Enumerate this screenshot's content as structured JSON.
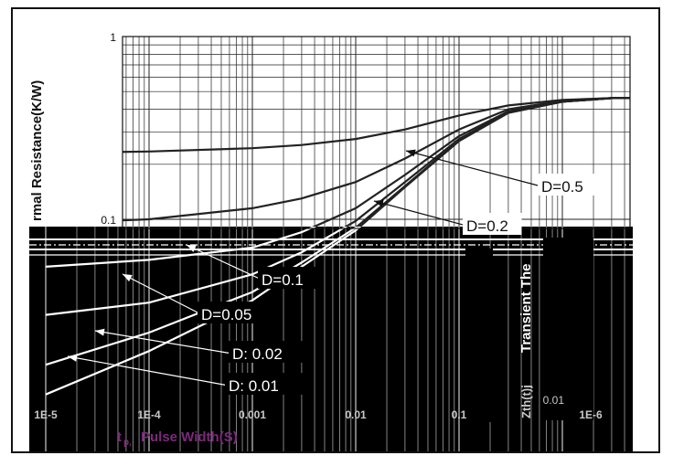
{
  "chart_data": {
    "type": "line",
    "title": "",
    "ylabel": "Zth(t)j-c Transient Thermal Resistance(K/W)",
    "ylabel_visible": "rmal Resistance(K/W)",
    "ylabel_ghost": "Transient The",
    "ylabel_ghost_symbol": "Zth(t)j",
    "xlabel": "tp, Pulse Width(S)",
    "xlabel_visible": "t",
    "xlabel_suffix": "p,",
    "xlabel_rest": "Pulse Width(S)",
    "x_scale": "log",
    "y_scale": "log",
    "xlim": [
      1e-05,
      10
    ],
    "ylim": [
      0.01,
      1
    ],
    "grid": true,
    "x_ticks": [
      "1E-5",
      "1E-4",
      "0.001",
      "0.01",
      "0.1",
      "1E-6"
    ],
    "y_ticks": [
      "1",
      "0.1",
      "0.01"
    ],
    "series": [
      {
        "name": "D=0.5",
        "x": [
          1e-05,
          0.0001,
          0.001,
          0.003,
          0.01,
          0.03,
          0.1,
          0.3,
          1,
          3,
          10
        ],
        "y": [
          0.23,
          0.235,
          0.245,
          0.255,
          0.275,
          0.31,
          0.37,
          0.42,
          0.45,
          0.46,
          0.46
        ]
      },
      {
        "name": "D=0.2",
        "x": [
          1e-05,
          0.0001,
          0.001,
          0.003,
          0.01,
          0.03,
          0.1,
          0.3,
          1,
          3,
          10
        ],
        "y": [
          0.095,
          0.1,
          0.115,
          0.13,
          0.16,
          0.215,
          0.31,
          0.4,
          0.445,
          0.46,
          0.46
        ]
      },
      {
        "name": "D=0.1",
        "x": [
          1e-05,
          0.0001,
          0.001,
          0.003,
          0.01,
          0.03,
          0.1,
          0.3,
          1,
          3,
          10
        ],
        "y": [
          0.055,
          0.06,
          0.07,
          0.085,
          0.115,
          0.175,
          0.285,
          0.39,
          0.44,
          0.46,
          0.46
        ]
      },
      {
        "name": "D=0.05",
        "x": [
          1e-05,
          0.0001,
          0.001,
          0.003,
          0.01,
          0.03,
          0.1,
          0.3,
          1,
          3,
          10
        ],
        "y": [
          0.03,
          0.035,
          0.05,
          0.066,
          0.098,
          0.16,
          0.275,
          0.385,
          0.44,
          0.46,
          0.46
        ]
      },
      {
        "name": "D= 0.02",
        "x": [
          1e-05,
          0.0001,
          0.001,
          0.003,
          0.01,
          0.03,
          0.1,
          0.3,
          1,
          3,
          10
        ],
        "y": [
          0.016,
          0.024,
          0.04,
          0.058,
          0.09,
          0.152,
          0.27,
          0.383,
          0.44,
          0.46,
          0.46
        ]
      },
      {
        "name": "D= 0.01",
        "x": [
          1e-05,
          0.0001,
          0.001,
          0.003,
          0.01,
          0.03,
          0.1,
          0.3,
          1,
          3,
          10
        ],
        "y": [
          0.011,
          0.019,
          0.036,
          0.055,
          0.087,
          0.15,
          0.268,
          0.382,
          0.44,
          0.46,
          0.46
        ]
      }
    ],
    "annotations": [
      "D=0.5",
      "D=0.2",
      "D=0.1",
      "D=0.05",
      "D: 0.02",
      "D: 0.01"
    ],
    "colors": {
      "axis": "#111111",
      "grid": "#222222",
      "line": "#222222",
      "glitch_bg": "#000000",
      "glitch_line": "#ffffff"
    }
  }
}
